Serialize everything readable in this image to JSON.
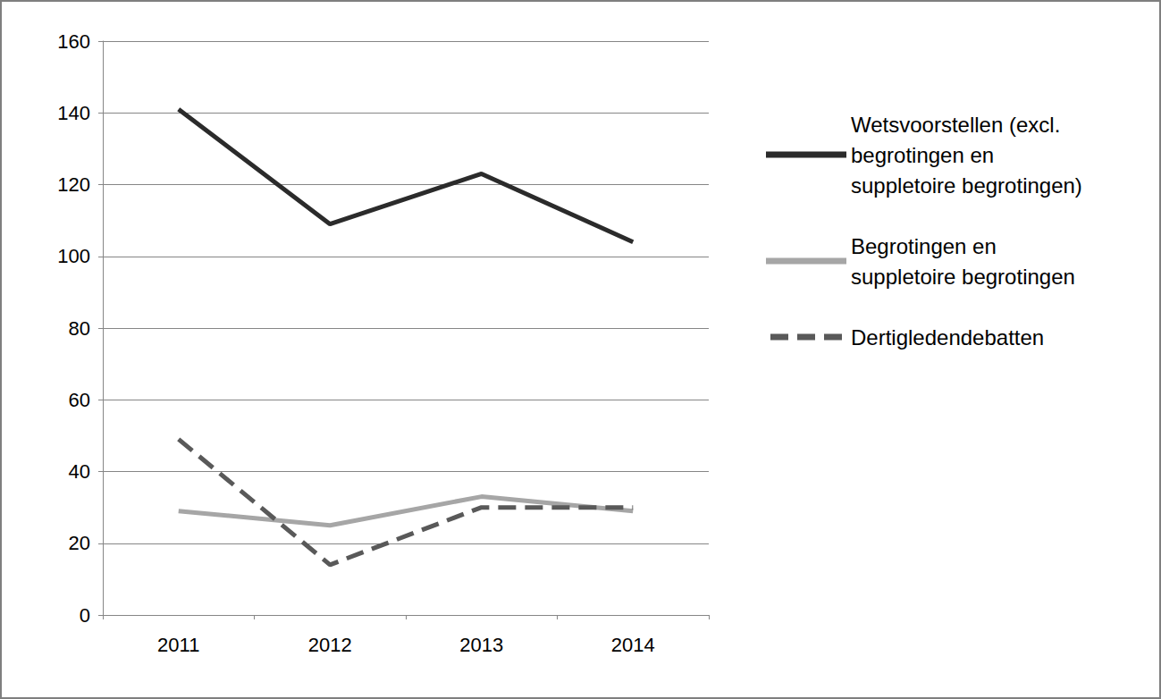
{
  "chart_data": {
    "type": "line",
    "categories": [
      "2011",
      "2012",
      "2013",
      "2014"
    ],
    "series": [
      {
        "name": "Wetsvoorstellen (excl. begrotingen en suppletoire begrotingen)",
        "color": "#2b2b2b",
        "line_style": "solid",
        "values": [
          141,
          109,
          123,
          104
        ]
      },
      {
        "name": "Begrotingen en suppletoire begrotingen",
        "color": "#a6a6a6",
        "line_style": "solid",
        "values": [
          29,
          25,
          33,
          29
        ]
      },
      {
        "name": "Dertigledendebatten",
        "color": "#595959",
        "line_style": "dashed",
        "values": [
          49,
          14,
          30,
          30
        ]
      }
    ],
    "ylim": [
      0,
      160
    ],
    "yticks": [
      0,
      20,
      40,
      60,
      80,
      100,
      120,
      140,
      160
    ],
    "grid": true,
    "legend": "right",
    "marker": "none"
  }
}
